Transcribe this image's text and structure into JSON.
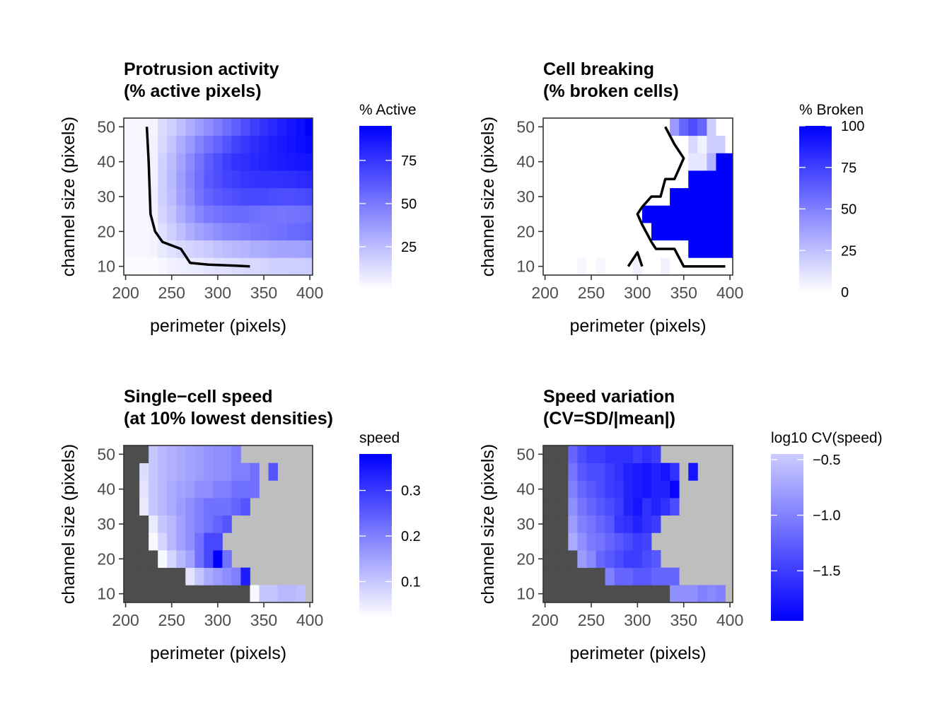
{
  "chart_data": [
    {
      "type": "heatmap",
      "title_lines": [
        "Protrusion activity",
        "(% active pixels)"
      ],
      "xlabel": "perimeter (pixels)",
      "ylabel": "channel size (pixels)",
      "x_ticks": [
        200,
        250,
        300,
        350,
        400
      ],
      "y_ticks": [
        10,
        20,
        30,
        40,
        50
      ],
      "x_start": 200,
      "x_step": 10,
      "y_values": [
        10,
        15,
        20,
        25,
        30,
        35,
        40,
        45,
        50
      ],
      "xlim": [
        198,
        403
      ],
      "ylim": [
        7.5,
        52.5
      ],
      "na_color": "#ffffff",
      "legend": {
        "title": "% Active",
        "min": 0,
        "max": 95,
        "breaks": [
          25,
          50,
          75
        ],
        "low_color": "#ffffff",
        "high_color": "#0000ff",
        "reverse": false
      },
      "values": [
        [
          2,
          2,
          2,
          2,
          3,
          5,
          6,
          7,
          8,
          10,
          11,
          12,
          13,
          14,
          15,
          16,
          17,
          17,
          18,
          18,
          19
        ],
        [
          3,
          3,
          3,
          4,
          8,
          11,
          14,
          16,
          18,
          20,
          23,
          25,
          27,
          28,
          30,
          31,
          33,
          34,
          34,
          35,
          36
        ],
        [
          3,
          3,
          3,
          4,
          12,
          18,
          24,
          30,
          35,
          38,
          42,
          45,
          46,
          48,
          50,
          51,
          52,
          53,
          55,
          56,
          58
        ],
        [
          3,
          3,
          3,
          5,
          16,
          22,
          30,
          38,
          45,
          50,
          52,
          54,
          55,
          55,
          54,
          52,
          52,
          51,
          52,
          53,
          54
        ],
        [
          3,
          3,
          3,
          6,
          18,
          25,
          35,
          43,
          52,
          58,
          62,
          64,
          66,
          68,
          68,
          68,
          67,
          66,
          66,
          67,
          68
        ],
        [
          3,
          3,
          3,
          5,
          18,
          26,
          36,
          45,
          54,
          62,
          66,
          70,
          72,
          75,
          76,
          76,
          76,
          77,
          78,
          79,
          80
        ],
        [
          3,
          3,
          3,
          5,
          17,
          25,
          34,
          43,
          52,
          60,
          66,
          72,
          76,
          78,
          80,
          82,
          84,
          85,
          86,
          87,
          88
        ],
        [
          3,
          3,
          3,
          5,
          15,
          22,
          30,
          38,
          46,
          52,
          58,
          64,
          70,
          74,
          78,
          81,
          84,
          86,
          88,
          90,
          92
        ],
        [
          3,
          3,
          3,
          4,
          13,
          18,
          24,
          30,
          36,
          42,
          48,
          54,
          60,
          66,
          72,
          76,
          80,
          84,
          87,
          90,
          95
        ]
      ],
      "contour": [
        [
          223,
          50
        ],
        [
          225,
          40
        ],
        [
          227,
          25
        ],
        [
          232,
          20
        ],
        [
          240,
          17
        ],
        [
          260,
          15
        ],
        [
          270,
          11
        ],
        [
          290,
          10.5
        ],
        [
          320,
          10.2
        ],
        [
          335,
          10
        ]
      ]
    },
    {
      "type": "heatmap",
      "title_lines": [
        "Cell breaking",
        "(% broken cells)"
      ],
      "xlabel": "perimeter (pixels)",
      "ylabel": "channel size (pixels)",
      "x_ticks": [
        200,
        250,
        300,
        350,
        400
      ],
      "y_ticks": [
        10,
        20,
        30,
        40,
        50
      ],
      "x_start": 200,
      "x_step": 10,
      "y_values": [
        10,
        15,
        20,
        25,
        30,
        35,
        40,
        45,
        50
      ],
      "xlim": [
        198,
        403
      ],
      "ylim": [
        7.5,
        52.5
      ],
      "na_color": "#ffffff",
      "legend": {
        "title": "% Broken",
        "min": 0,
        "max": 100,
        "breaks": [
          0,
          25,
          50,
          75,
          100
        ],
        "low_color": "#ffffff",
        "high_color": "#0000ff",
        "reverse": false
      },
      "values": [
        [
          0,
          0,
          0,
          0,
          3,
          0,
          3,
          0,
          0,
          0,
          5,
          0,
          0,
          5,
          0,
          0,
          0,
          0,
          0,
          0,
          0
        ],
        [
          0,
          0,
          0,
          0,
          0,
          0,
          0,
          0,
          0,
          0,
          0,
          0,
          0,
          0,
          0,
          0,
          100,
          100,
          100,
          100,
          100
        ],
        [
          0,
          0,
          0,
          0,
          0,
          0,
          0,
          0,
          0,
          0,
          0,
          0,
          100,
          100,
          100,
          100,
          100,
          100,
          100,
          100,
          100
        ],
        [
          0,
          0,
          0,
          0,
          0,
          0,
          0,
          0,
          0,
          0,
          0,
          100,
          100,
          100,
          100,
          100,
          100,
          100,
          100,
          100,
          100
        ],
        [
          0,
          0,
          0,
          0,
          0,
          0,
          0,
          0,
          0,
          0,
          0,
          0,
          0,
          0,
          100,
          100,
          100,
          100,
          100,
          100,
          100
        ],
        [
          0,
          0,
          0,
          0,
          0,
          0,
          0,
          0,
          0,
          0,
          0,
          0,
          0,
          0,
          0,
          0,
          100,
          100,
          100,
          100,
          100
        ],
        [
          0,
          0,
          0,
          0,
          0,
          0,
          0,
          0,
          0,
          0,
          0,
          0,
          0,
          0,
          0,
          0,
          10,
          10,
          30,
          100,
          100
        ],
        [
          0,
          0,
          0,
          0,
          0,
          0,
          0,
          0,
          0,
          0,
          0,
          0,
          0,
          0,
          0,
          0,
          15,
          5,
          20,
          20,
          0
        ],
        [
          0,
          0,
          0,
          0,
          0,
          0,
          0,
          0,
          0,
          0,
          0,
          0,
          0,
          0,
          40,
          60,
          70,
          60,
          20,
          0,
          0
        ]
      ],
      "contour": [
        [
          330,
          50
        ],
        [
          340,
          45
        ],
        [
          350,
          41
        ],
        [
          345,
          38
        ],
        [
          340,
          35
        ],
        [
          330,
          35
        ],
        [
          325,
          30
        ],
        [
          315,
          30
        ],
        [
          305,
          27
        ],
        [
          300,
          25
        ],
        [
          305,
          22
        ],
        [
          315,
          17
        ],
        [
          320,
          15
        ],
        [
          340,
          15
        ],
        [
          350,
          10
        ],
        [
          380,
          10
        ],
        [
          395,
          10
        ]
      ],
      "contour2": [
        [
          290,
          10
        ],
        [
          300,
          14
        ],
        [
          305,
          10
        ]
      ]
    },
    {
      "type": "heatmap",
      "title_lines": [
        "Single−cell speed",
        "(at 10% lowest densities)"
      ],
      "xlabel": "perimeter (pixels)",
      "ylabel": "channel size (pixels)",
      "x_ticks": [
        200,
        250,
        300,
        350,
        400
      ],
      "y_ticks": [
        10,
        20,
        30,
        40,
        50
      ],
      "x_start": 200,
      "x_step": 10,
      "y_values": [
        10,
        15,
        20,
        25,
        30,
        35,
        40,
        45,
        50
      ],
      "xlim": [
        198,
        403
      ],
      "ylim": [
        7.5,
        52.5
      ],
      "na_color": "#bebebe",
      "low_color_cells": "#4d4d4d",
      "legend": {
        "title": "speed",
        "min": 0.02,
        "max": 0.38,
        "breaks": [
          0.1,
          0.2,
          0.3
        ],
        "low_color": "#ffffff",
        "high_color": "#0000ff",
        "reverse": false
      },
      "values": [
        [
          "D",
          "D",
          "D",
          "D",
          "D",
          "D",
          "D",
          "D",
          "D",
          "D",
          "D",
          "D",
          "D",
          "D",
          0.03,
          0.1,
          0.1,
          0.12,
          0.12,
          0.11,
          null
        ],
        [
          "D",
          "D",
          "D",
          "D",
          "D",
          "D",
          "D",
          0.06,
          0.1,
          0.14,
          0.16,
          0.18,
          0.2,
          0.34,
          null,
          null,
          null,
          null,
          null,
          null,
          null
        ],
        [
          "D",
          "D",
          "D",
          "D",
          0.03,
          0.08,
          0.12,
          0.15,
          0.22,
          0.28,
          0.38,
          0.22,
          null,
          null,
          null,
          null,
          null,
          null,
          null,
          null,
          null
        ],
        [
          "D",
          "D",
          "D",
          0.03,
          0.08,
          0.12,
          0.15,
          0.18,
          0.22,
          0.28,
          0.28,
          null,
          null,
          null,
          null,
          null,
          null,
          null,
          null,
          null,
          null
        ],
        [
          "D",
          "D",
          "D",
          0.05,
          0.1,
          0.12,
          0.15,
          0.18,
          0.2,
          0.22,
          0.24,
          0.26,
          null,
          null,
          null,
          null,
          null,
          null,
          null,
          null,
          null
        ],
        [
          "D",
          "D",
          0.05,
          0.1,
          0.12,
          0.14,
          0.16,
          0.18,
          0.2,
          0.22,
          0.22,
          0.22,
          0.24,
          0.26,
          null,
          null,
          null,
          null,
          null,
          null,
          null
        ],
        [
          "D",
          "D",
          0.06,
          0.1,
          0.12,
          0.14,
          0.15,
          0.16,
          0.18,
          0.18,
          0.2,
          0.2,
          0.22,
          0.22,
          0.22,
          null,
          null,
          null,
          null,
          null,
          null
        ],
        [
          "D",
          "D",
          0.07,
          0.1,
          0.12,
          0.13,
          0.14,
          0.15,
          0.16,
          0.17,
          0.18,
          0.18,
          0.2,
          0.2,
          0.22,
          null,
          0.26,
          null,
          null,
          null,
          null
        ],
        [
          "D",
          "D",
          "D",
          0.1,
          0.12,
          0.13,
          0.14,
          0.15,
          0.16,
          0.17,
          0.18,
          0.18,
          0.2,
          null,
          null,
          null,
          null,
          null,
          null,
          null,
          null
        ]
      ]
    },
    {
      "type": "heatmap",
      "title_lines": [
        "Speed variation",
        "(CV=SD/|mean|)"
      ],
      "xlabel": "perimeter (pixels)",
      "ylabel": "channel size (pixels)",
      "x_ticks": [
        200,
        250,
        300,
        350,
        400
      ],
      "y_ticks": [
        10,
        20,
        30,
        40,
        50
      ],
      "x_start": 200,
      "x_step": 10,
      "y_values": [
        10,
        15,
        20,
        25,
        30,
        35,
        40,
        45,
        50
      ],
      "xlim": [
        198,
        403
      ],
      "ylim": [
        7.5,
        52.5
      ],
      "na_color": "#bebebe",
      "low_color_cells": "#4d4d4d",
      "legend": {
        "title": "log10 CV(speed)",
        "min": -1.95,
        "max": -0.45,
        "breaks": [
          -0.5,
          -1.0,
          -1.5
        ],
        "break_labels": [
          "−0.5",
          "−1.0",
          "−1.5"
        ],
        "low_color": "#0000ff",
        "high_color": "#ccccff",
        "reverse": true
      },
      "values": [
        [
          "D",
          "D",
          "D",
          "D",
          "D",
          "D",
          "D",
          "D",
          "D",
          "D",
          "D",
          "D",
          "D",
          "D",
          -0.9,
          -0.9,
          -0.9,
          -1.0,
          -0.95,
          -1.0,
          null
        ],
        [
          "D",
          "D",
          "D",
          "D",
          "D",
          "D",
          "D",
          -1.0,
          -1.2,
          -1.2,
          -1.3,
          -1.3,
          -1.2,
          -1.2,
          -1.2,
          null,
          null,
          null,
          null,
          null,
          null
        ],
        [
          "D",
          "D",
          "D",
          "D",
          -0.8,
          -0.95,
          -1.2,
          -1.3,
          -1.4,
          -1.5,
          -1.5,
          -1.4,
          -1.3,
          null,
          null,
          null,
          null,
          null,
          null,
          null,
          null
        ],
        [
          "D",
          "D",
          "D",
          -0.7,
          -0.9,
          -1.05,
          -1.1,
          -1.2,
          -1.3,
          -1.4,
          -1.5,
          -1.45,
          null,
          null,
          null,
          null,
          null,
          null,
          null,
          null,
          null
        ],
        [
          "D",
          "D",
          "D",
          -0.8,
          -1.0,
          -1.1,
          -1.2,
          -1.3,
          -1.55,
          -1.6,
          -1.7,
          -1.6,
          -1.5,
          null,
          null,
          null,
          null,
          null,
          null,
          null,
          null
        ],
        [
          "D",
          "D",
          "D",
          -0.9,
          -1.1,
          -1.2,
          -1.3,
          -1.4,
          -1.5,
          -1.7,
          -1.8,
          -1.6,
          -1.7,
          -1.6,
          -1.4,
          null,
          null,
          null,
          null,
          null,
          null
        ],
        [
          "D",
          "D",
          "D",
          -1.0,
          -1.2,
          -1.3,
          -1.4,
          -1.5,
          -1.55,
          -1.7,
          -1.75,
          -1.8,
          -1.7,
          -1.7,
          -1.9,
          null,
          null,
          null,
          null,
          null,
          null
        ],
        [
          "D",
          "D",
          "D",
          -1.1,
          -1.3,
          -1.4,
          -1.4,
          -1.5,
          -1.6,
          -1.7,
          -1.75,
          -1.8,
          -1.7,
          -1.8,
          -1.6,
          null,
          -1.8,
          null,
          null,
          null,
          null
        ],
        [
          "D",
          "D",
          "D",
          -1.2,
          -1.4,
          -1.5,
          -1.5,
          -1.6,
          -1.6,
          -1.6,
          -1.5,
          -1.6,
          -1.5,
          null,
          null,
          null,
          null,
          null,
          null,
          null,
          null
        ]
      ]
    }
  ]
}
